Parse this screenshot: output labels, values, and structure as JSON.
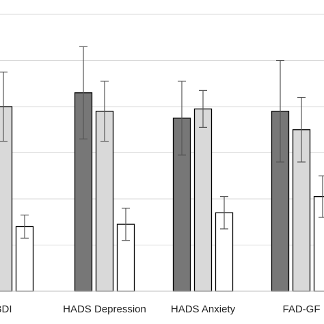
{
  "chart_data": {
    "type": "bar",
    "title": "",
    "xlabel": "",
    "ylabel": "",
    "categories": [
      "BDI",
      "HADS Depression",
      "HADS Anxiety",
      "FAD-GF"
    ],
    "ylim": [
      0,
      6.1
    ],
    "y_gridlines": [
      0,
      1,
      2,
      3,
      4,
      5,
      6
    ],
    "grid": true,
    "legend": "none",
    "series": [
      {
        "color": "#777777",
        "values": [
          null,
          4.3,
          3.75,
          3.9
        ],
        "error": [
          null,
          1.0,
          0.8,
          1.1
        ]
      },
      {
        "color": "#d9d9d9",
        "values": [
          4.0,
          3.9,
          3.95,
          3.5
        ],
        "error": [
          0.75,
          0.65,
          0.4,
          0.7
        ]
      },
      {
        "color": "#ffffff",
        "values": [
          1.4,
          1.45,
          1.7,
          2.05
        ],
        "error": [
          0.25,
          0.35,
          0.35,
          0.45
        ]
      }
    ]
  }
}
